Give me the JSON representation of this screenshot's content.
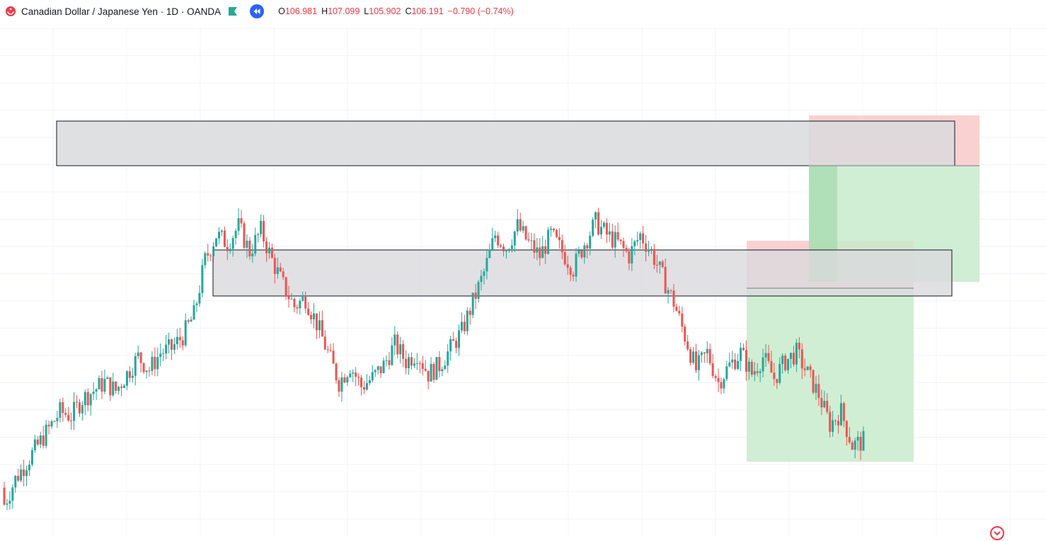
{
  "header": {
    "symbol_title": "Canadian Dollar / Japanese Yen · 1D · OANDA",
    "open_key": "O",
    "open": "106.981",
    "high_key": "H",
    "high": "107.099",
    "low_key": "L",
    "low": "105.902",
    "close_key": "C",
    "close": "106.191",
    "change": "−0.790 (−0.74%)",
    "logo_icon": "oanda-logo-icon",
    "flag_icon": "flag-icon",
    "replay_icon": "replay-icon"
  },
  "colors": {
    "up": "#26a69a",
    "down": "#ef5350",
    "grid": "#f0f3fa",
    "zone_fill": "#d9dadd",
    "profit_fill": "#c8ebcc",
    "loss_fill": "#f9c9c9",
    "accent": "#2962ff"
  },
  "chart_data": {
    "type": "candlestick",
    "title": "Canadian Dollar / Japanese Yen · 1D · OANDA",
    "last_ohlc": {
      "open": 106.981,
      "high": 107.099,
      "low": 105.902,
      "close": 106.191
    },
    "price_window_fraction": [
      [
        0.12,
        0.08,
        0.15,
        0.06
      ],
      [
        0.08,
        0.14,
        0.04,
        0.17
      ],
      [
        0.14,
        0.18,
        0.11,
        0.21
      ],
      [
        0.18,
        0.22,
        0.15,
        0.24
      ],
      [
        0.22,
        0.26,
        0.2,
        0.29
      ],
      [
        0.26,
        0.3,
        0.24,
        0.32
      ],
      [
        0.3,
        0.29,
        0.26,
        0.33
      ],
      [
        0.29,
        0.33,
        0.27,
        0.35
      ],
      [
        0.33,
        0.35,
        0.31,
        0.37
      ],
      [
        0.35,
        0.37,
        0.33,
        0.39
      ],
      [
        0.37,
        0.35,
        0.33,
        0.38
      ],
      [
        0.35,
        0.39,
        0.34,
        0.41
      ],
      [
        0.39,
        0.43,
        0.37,
        0.45
      ],
      [
        0.43,
        0.4,
        0.38,
        0.45
      ],
      [
        0.4,
        0.44,
        0.39,
        0.46
      ],
      [
        0.44,
        0.45,
        0.42,
        0.48
      ],
      [
        0.45,
        0.48,
        0.43,
        0.5
      ],
      [
        0.48,
        0.53,
        0.46,
        0.56
      ],
      [
        0.53,
        0.66,
        0.52,
        0.69
      ],
      [
        0.66,
        0.72,
        0.64,
        0.76
      ],
      [
        0.72,
        0.7,
        0.66,
        0.77
      ],
      [
        0.7,
        0.74,
        0.68,
        0.78
      ],
      [
        0.74,
        0.68,
        0.66,
        0.77
      ],
      [
        0.68,
        0.73,
        0.66,
        0.76
      ],
      [
        0.73,
        0.66,
        0.6,
        0.74
      ],
      [
        0.66,
        0.6,
        0.56,
        0.68
      ],
      [
        0.6,
        0.55,
        0.52,
        0.62
      ],
      [
        0.55,
        0.57,
        0.53,
        0.6
      ],
      [
        0.57,
        0.51,
        0.46,
        0.59
      ],
      [
        0.51,
        0.44,
        0.42,
        0.53
      ],
      [
        0.44,
        0.37,
        0.32,
        0.46
      ],
      [
        0.37,
        0.41,
        0.33,
        0.43
      ],
      [
        0.41,
        0.36,
        0.32,
        0.43
      ],
      [
        0.36,
        0.38,
        0.34,
        0.41
      ],
      [
        0.38,
        0.41,
        0.36,
        0.43
      ],
      [
        0.41,
        0.46,
        0.39,
        0.48
      ],
      [
        0.46,
        0.42,
        0.38,
        0.48
      ],
      [
        0.42,
        0.44,
        0.39,
        0.46
      ],
      [
        0.44,
        0.39,
        0.36,
        0.46
      ],
      [
        0.39,
        0.41,
        0.37,
        0.44
      ],
      [
        0.41,
        0.45,
        0.39,
        0.47
      ],
      [
        0.45,
        0.49,
        0.43,
        0.52
      ],
      [
        0.49,
        0.56,
        0.47,
        0.59
      ],
      [
        0.56,
        0.63,
        0.54,
        0.68
      ],
      [
        0.63,
        0.72,
        0.61,
        0.73
      ],
      [
        0.72,
        0.69,
        0.65,
        0.75
      ],
      [
        0.69,
        0.74,
        0.67,
        0.78
      ],
      [
        0.74,
        0.7,
        0.66,
        0.75
      ],
      [
        0.7,
        0.67,
        0.64,
        0.73
      ],
      [
        0.67,
        0.72,
        0.65,
        0.75
      ],
      [
        0.72,
        0.68,
        0.64,
        0.74
      ],
      [
        0.68,
        0.64,
        0.61,
        0.71
      ],
      [
        0.64,
        0.7,
        0.62,
        0.72
      ],
      [
        0.7,
        0.75,
        0.68,
        0.76
      ],
      [
        0.75,
        0.72,
        0.69,
        0.76
      ],
      [
        0.72,
        0.7,
        0.66,
        0.74
      ],
      [
        0.7,
        0.67,
        0.63,
        0.72
      ],
      [
        0.67,
        0.72,
        0.65,
        0.73
      ],
      [
        0.72,
        0.68,
        0.64,
        0.74
      ],
      [
        0.68,
        0.62,
        0.59,
        0.7
      ],
      [
        0.62,
        0.56,
        0.53,
        0.64
      ],
      [
        0.56,
        0.48,
        0.42,
        0.58
      ],
      [
        0.48,
        0.4,
        0.36,
        0.5
      ],
      [
        0.4,
        0.44,
        0.38,
        0.47
      ],
      [
        0.44,
        0.37,
        0.33,
        0.47
      ],
      [
        0.37,
        0.41,
        0.34,
        0.44
      ],
      [
        0.41,
        0.44,
        0.38,
        0.47
      ],
      [
        0.44,
        0.39,
        0.35,
        0.47
      ],
      [
        0.39,
        0.43,
        0.36,
        0.45
      ],
      [
        0.43,
        0.38,
        0.34,
        0.46
      ],
      [
        0.38,
        0.42,
        0.35,
        0.44
      ],
      [
        0.42,
        0.44,
        0.37,
        0.46
      ],
      [
        0.44,
        0.39,
        0.33,
        0.45
      ],
      [
        0.39,
        0.34,
        0.31,
        0.41
      ],
      [
        0.34,
        0.27,
        0.22,
        0.36
      ],
      [
        0.27,
        0.3,
        0.25,
        0.33
      ],
      [
        0.27,
        0.22,
        0.18,
        0.3
      ],
      [
        0.22,
        0.23,
        0.15,
        0.25
      ]
    ],
    "note_unit": "fraction of the visible price range"
  },
  "zones": [
    {
      "name": "resistance-zone-top"
    },
    {
      "name": "resistance-zone-middle"
    }
  ],
  "positions": [
    {
      "name": "long-position-lower",
      "type": "long"
    },
    {
      "name": "long-position-upper",
      "type": "long"
    }
  ]
}
